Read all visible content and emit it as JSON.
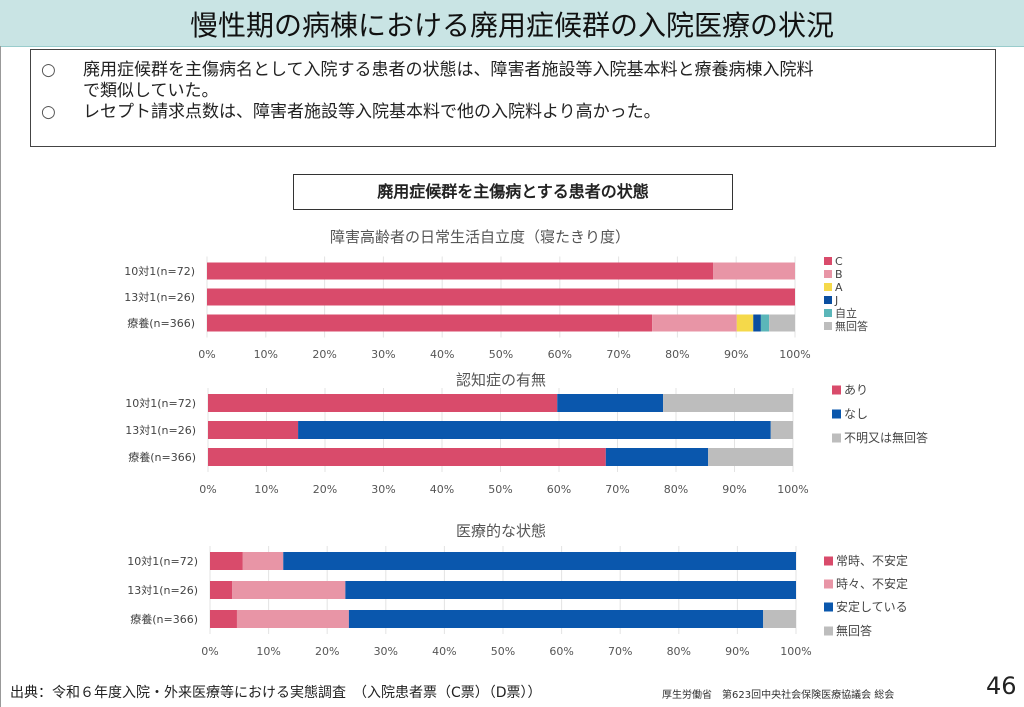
{
  "header": {
    "title": "慢性期の病棟における廃用症候群の入院医療の状況"
  },
  "summary": {
    "bullets": [
      {
        "mark": "○",
        "line1": "廃用症候群を主傷病名として入院する患者の状態は、障害者施設等入院基本料と療養病棟入院料",
        "line2": "で類似していた。"
      },
      {
        "mark": "○",
        "line1": "レセプト請求点数は、障害者施設等入院基本料で他の入院料より高かった。"
      }
    ]
  },
  "section_heading": "廃用症候群を主傷病とする患者の状態",
  "chart_data": [
    {
      "type": "bar",
      "orientation": "horizontal-stacked-100",
      "title": "障害高齢者の日常生活自立度（寝たきり度）",
      "categories": [
        "10対1(n=72)",
        "13対1(n=26)",
        "療養(n=366)"
      ],
      "xlim": [
        0,
        100
      ],
      "xticks": [
        "0%",
        "10%",
        "20%",
        "30%",
        "40%",
        "50%",
        "60%",
        "70%",
        "80%",
        "90%",
        "100%"
      ],
      "grid": true,
      "legend": "right",
      "series": [
        {
          "name": "C",
          "color": "#d94b6b",
          "values": [
            86.1,
            100,
            75.7
          ]
        },
        {
          "name": "B",
          "color": "#e895a6",
          "values": [
            13.9,
            0,
            14.4
          ]
        },
        {
          "name": "A",
          "color": "#f5d94a",
          "values": [
            0,
            0,
            2.8
          ]
        },
        {
          "name": "J",
          "color": "#0a4ea0",
          "values": [
            0,
            0,
            1.3
          ]
        },
        {
          "name": "自立",
          "color": "#5bb6b9",
          "values": [
            0,
            0,
            1.4
          ]
        },
        {
          "name": "無回答",
          "color": "#bdbdbd",
          "values": [
            0,
            0,
            4.4
          ]
        }
      ]
    },
    {
      "type": "bar",
      "orientation": "horizontal-stacked-100",
      "title": "認知症の有無",
      "categories": [
        "10対1(n=72)",
        "13対1(n=26)",
        "療養(n=366)"
      ],
      "xlim": [
        0,
        100
      ],
      "xticks": [
        "0%",
        "10%",
        "20%",
        "30%",
        "40%",
        "50%",
        "60%",
        "70%",
        "80%",
        "90%",
        "100%"
      ],
      "grid": true,
      "legend": "right",
      "series": [
        {
          "name": "あり",
          "color": "#d94b6b",
          "values": [
            59.7,
            15.4,
            68.0
          ]
        },
        {
          "name": "なし",
          "color": "#0a57ad",
          "values": [
            18.1,
            80.8,
            17.5
          ]
        },
        {
          "name": "不明又は無回答",
          "color": "#bdbdbd",
          "values": [
            22.2,
            3.8,
            14.5
          ]
        }
      ]
    },
    {
      "type": "bar",
      "orientation": "horizontal-stacked-100",
      "title": "医療的な状態",
      "categories": [
        "10対1(n=72)",
        "13対1(n=26)",
        "療養(n=366)"
      ],
      "xlim": [
        0,
        100
      ],
      "xticks": [
        "0%",
        "10%",
        "20%",
        "30%",
        "40%",
        "50%",
        "60%",
        "70%",
        "80%",
        "90%",
        "100%"
      ],
      "grid": true,
      "legend": "right",
      "series": [
        {
          "name": "常時、不安定",
          "color": "#d94b6b",
          "values": [
            5.6,
            3.8,
            4.6
          ]
        },
        {
          "name": "時々、不安定",
          "color": "#e895a6",
          "values": [
            6.9,
            19.3,
            19.1
          ]
        },
        {
          "name": "安定している",
          "color": "#0a57ad",
          "values": [
            87.5,
            76.9,
            70.7
          ]
        },
        {
          "name": "無回答",
          "color": "#bdbdbd",
          "values": [
            0,
            0,
            5.6
          ]
        }
      ]
    }
  ],
  "footer": {
    "source": "出典：令和６年度入院・外来医療等における実態調査　（入院患者票（C票）（D票））",
    "organization": "厚生労働省　第623回中央社会保険医療協議会 総会",
    "page_number": "46"
  }
}
